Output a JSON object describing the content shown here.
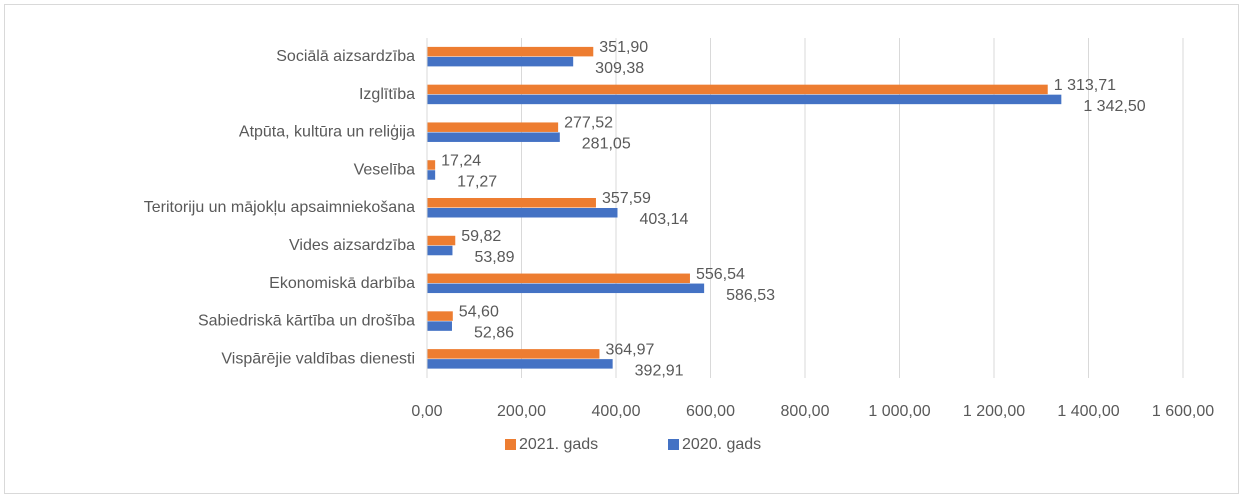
{
  "chart_data": {
    "type": "bar",
    "orientation": "horizontal",
    "categories": [
      "Sociālā aizsardzība",
      "Izglītība",
      "Atpūta, kultūra un reliģija",
      "Veselība",
      "Teritoriju un mājokļu apsaimniekošana",
      "Vides aizsardzība",
      "Ekonomiskā darbība",
      "Sabiedriskā kārtība un drošība",
      "Vispārējie valdības dienesti"
    ],
    "series": [
      {
        "name": "2021. gads",
        "color": "#ed7d31",
        "values": [
          351.9,
          1313.71,
          277.52,
          17.24,
          357.59,
          59.82,
          556.54,
          54.6,
          364.97
        ],
        "value_labels": [
          "351,90",
          "1 313,71",
          "277,52",
          "17,24",
          "357,59",
          "59,82",
          "556,54",
          "54,60",
          "364,97"
        ]
      },
      {
        "name": "2020. gads",
        "color": "#4472c4",
        "values": [
          309.38,
          1342.5,
          281.05,
          17.27,
          403.14,
          53.89,
          586.53,
          52.86,
          392.91
        ],
        "value_labels": [
          "309,38",
          "1 342,50",
          "281,05",
          "17,27",
          "403,14",
          "53,89",
          "586,53",
          "52,86",
          "392,91"
        ]
      }
    ],
    "xlim": [
      0,
      1600
    ],
    "xticks": [
      {
        "value": 0,
        "label": "0,00"
      },
      {
        "value": 200,
        "label": "200,00"
      },
      {
        "value": 400,
        "label": "400,00"
      },
      {
        "value": 600,
        "label": "600,00"
      },
      {
        "value": 800,
        "label": "800,00"
      },
      {
        "value": 1000,
        "label": "1 000,00"
      },
      {
        "value": 1200,
        "label": "1 200,00"
      },
      {
        "value": 1400,
        "label": "1 400,00"
      },
      {
        "value": 1600,
        "label": "1 600,00"
      }
    ],
    "grid": true,
    "legend": "bottom"
  }
}
